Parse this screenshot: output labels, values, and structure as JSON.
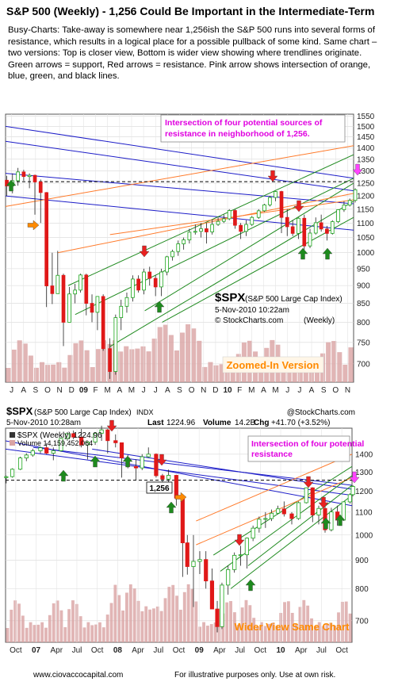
{
  "header": {
    "title": "S&P 500 (Weekly)  - 1,256 Could Be Important in the Intermediate-Term",
    "paragraphs": [
      "Busy-Charts:  Take-away is somewhere near 1,256ish the S&P 500 runs into several forms of resistance, which results in a logical place for a possible pullback of some kind.   Same chart – two versions: Top is closer view, Bottom is wider view showing where trendlines originate.  Green arrows = support, Red arrows = resistance.  Pink arrow shows intersection of orange, blue, green, and black lines."
    ]
  },
  "colors": {
    "resistance_note": "#e000e0",
    "blue_lines": "#1c1cc8",
    "green_lines": "#1f8a1f",
    "orange_lines": "#ff7a2a",
    "support_arrow": "#1e8a1e",
    "resistance_arrow": "#e82020",
    "pink_arrow": "#ff44ff",
    "up_candle": "#1aa51a",
    "down_candle": "#e01818",
    "zoom_label": "#ff8a00"
  },
  "chart_data": [
    {
      "type": "candlestick",
      "ticker": "$SPX",
      "index_name": "(S&P 500 Large Cap Index)",
      "timestamp": "5-Nov-2010 10:22am",
      "credit": "© StockCharts.com",
      "interval": "(Weekly)",
      "annotation": "Intersection of four potential sources of resistance in neighborhood of 1,256.",
      "version_label": "Zoomed-In Version",
      "x_ticks": [
        "J",
        "A",
        "S",
        "O",
        "N",
        "D",
        "09",
        "F",
        "M",
        "A",
        "M",
        "J",
        "J",
        "A",
        "S",
        "O",
        "N",
        "D",
        "10",
        "F",
        "M",
        "A",
        "M",
        "J",
        "J",
        "A",
        "S",
        "O",
        "N"
      ],
      "y_ticks": [
        700,
        750,
        800,
        850,
        900,
        950,
        1000,
        1050,
        1100,
        1150,
        1200,
        1250,
        1300,
        1350,
        1400,
        1450,
        1500,
        1550
      ],
      "ylim": [
        660,
        1560
      ],
      "y_scale": "log",
      "x_range": [
        "2008-07",
        "2010-11"
      ],
      "reference_level": 1256,
      "series": [
        {
          "values": [
            [
              "2008-07-04",
              1262,
              1280,
              1200,
              1239
            ],
            [
              "2008-07-18",
              1239,
              1290,
              1210,
              1260
            ],
            [
              "2008-08-01",
              1260,
              1313,
              1240,
              1296
            ],
            [
              "2008-08-15",
              1296,
              1305,
              1260,
              1277
            ],
            [
              "2008-08-29",
              1277,
              1290,
              1230,
              1282
            ],
            [
              "2008-09-12",
              1282,
              1285,
              1130,
              1255
            ],
            [
              "2008-09-26",
              1255,
              1265,
              1100,
              1213
            ],
            [
              "2008-10-10",
              1213,
              1215,
              840,
              899
            ],
            [
              "2008-10-24",
              899,
              1000,
              848,
              877
            ],
            [
              "2008-11-07",
              877,
              1006,
              880,
              930
            ],
            [
              "2008-11-21",
              930,
              935,
              741,
              800
            ],
            [
              "2008-12-05",
              800,
              896,
              815,
              876
            ],
            [
              "2008-12-19",
              876,
              905,
              850,
              887
            ],
            [
              "2009-01-02",
              887,
              935,
              880,
              931
            ],
            [
              "2009-01-16",
              931,
              935,
              818,
              850
            ],
            [
              "2009-01-30",
              850,
              875,
              800,
              826
            ],
            [
              "2009-02-13",
              826,
              870,
              780,
              869
            ],
            [
              "2009-02-27",
              869,
              875,
              730,
              735
            ],
            [
              "2009-03-13",
              735,
              760,
              667,
              683
            ],
            [
              "2009-03-27",
              683,
              820,
              676,
              812
            ],
            [
              "2009-04-10",
              812,
              860,
              780,
              842
            ],
            [
              "2009-04-24",
              842,
              880,
              825,
              866
            ],
            [
              "2009-05-08",
              866,
              930,
              855,
              919
            ],
            [
              "2009-05-22",
              919,
              930,
              880,
              887
            ],
            [
              "2009-06-05",
              887,
              950,
              875,
              940
            ],
            [
              "2009-06-19",
              940,
              956,
              900,
              921
            ],
            [
              "2009-07-03",
              921,
              930,
              870,
              896
            ],
            [
              "2009-07-17",
              896,
              950,
              870,
              940
            ],
            [
              "2009-07-31",
              940,
              990,
              930,
              987
            ],
            [
              "2009-08-14",
              987,
              1010,
              975,
              1004
            ],
            [
              "2009-08-28",
              1004,
              1040,
              990,
              1029
            ],
            [
              "2009-09-11",
              1029,
              1050,
              1010,
              1042
            ],
            [
              "2009-09-25",
              1042,
              1080,
              1030,
              1068
            ],
            [
              "2009-10-09",
              1068,
              1095,
              1060,
              1071
            ],
            [
              "2009-10-23",
              1071,
              1100,
              1050,
              1080
            ],
            [
              "2009-11-06",
              1080,
              1100,
              1030,
              1069
            ],
            [
              "2009-11-20",
              1069,
              1112,
              1060,
              1095
            ],
            [
              "2009-12-04",
              1095,
              1120,
              1090,
              1106
            ],
            [
              "2009-12-18",
              1106,
              1130,
              1100,
              1115
            ],
            [
              "2010-01-01",
              1115,
              1150,
              1110,
              1145
            ],
            [
              "2010-01-15",
              1145,
              1150,
              1080,
              1092
            ],
            [
              "2010-01-29",
              1092,
              1100,
              1045,
              1071
            ],
            [
              "2010-02-12",
              1071,
              1110,
              1055,
              1095
            ],
            [
              "2010-02-26",
              1095,
              1125,
              1090,
              1120
            ],
            [
              "2010-03-12",
              1120,
              1150,
              1115,
              1144
            ],
            [
              "2010-03-26",
              1144,
              1170,
              1140,
              1166
            ],
            [
              "2010-04-09",
              1166,
              1200,
              1160,
              1194
            ],
            [
              "2010-04-23",
              1194,
              1219,
              1180,
              1217
            ],
            [
              "2010-05-07",
              1217,
              1220,
              1065,
              1120
            ],
            [
              "2010-05-21",
              1120,
              1150,
              1055,
              1087
            ],
            [
              "2010-06-04",
              1087,
              1110,
              1055,
              1064
            ],
            [
              "2010-06-18",
              1064,
              1120,
              1045,
              1117
            ],
            [
              "2010-07-02",
              1117,
              1130,
              1010,
              1022
            ],
            [
              "2010-07-16",
              1022,
              1080,
              1015,
              1065
            ],
            [
              "2010-07-30",
              1065,
              1120,
              1060,
              1101
            ],
            [
              "2010-08-13",
              1101,
              1130,
              1070,
              1079
            ],
            [
              "2010-08-27",
              1079,
              1090,
              1040,
              1064
            ],
            [
              "2010-09-10",
              1064,
              1110,
              1060,
              1105
            ],
            [
              "2010-09-24",
              1105,
              1150,
              1100,
              1148
            ],
            [
              "2010-10-08",
              1148,
              1180,
              1140,
              1165
            ],
            [
              "2010-10-22",
              1165,
              1190,
              1160,
              1183
            ],
            [
              "2010-11-05",
              1183,
              1230,
              1175,
              1224
            ]
          ]
        }
      ]
    },
    {
      "type": "candlestick",
      "ticker": "$SPX",
      "index_name": "(S&P 500 Large Cap Index)",
      "exchange": "INDX",
      "credit": "@StockCharts.com",
      "timestamp": "5-Nov-2010 10:28am",
      "last_label": "Last",
      "last_value": "1224.96",
      "volume_label": "Volume",
      "volume_value": "14.2B",
      "chg_label": "Chg",
      "chg_value": "+41.70 (+3.52%)",
      "legend_price": "$SPX (Weekly) 1224.96",
      "legend_volume": "Volume 14,159,452,064",
      "annotation": "Intersection of four potential resistance",
      "reference_label": "1,256",
      "version_label": "Wider View Same Chart",
      "x_ticks": [
        "Oct",
        "07",
        "Apr",
        "Jul",
        "Oct",
        "08",
        "Apr",
        "Jul",
        "Oct",
        "09",
        "Apr",
        "Jul",
        "Oct",
        "10",
        "Apr",
        "Jul",
        "Oct"
      ],
      "y_ticks": [
        700,
        800,
        900,
        1000,
        1100,
        1200,
        1300,
        1400
      ],
      "ylim": [
        640,
        1560
      ],
      "y_scale": "log",
      "x_range": [
        "2006-08",
        "2010-11"
      ],
      "reference_level": 1256,
      "series": [
        {
          "values": [
            [
              "2006-08-04",
              1270,
              1280,
              1240,
              1275
            ],
            [
              "2006-09-01",
              1275,
              1320,
              1270,
              1315
            ],
            [
              "2006-10-06",
              1315,
              1385,
              1310,
              1378
            ],
            [
              "2006-11-03",
              1378,
              1405,
              1360,
              1395
            ],
            [
              "2006-12-01",
              1395,
              1432,
              1385,
              1420
            ],
            [
              "2007-01-05",
              1420,
              1445,
              1405,
              1438
            ],
            [
              "2007-02-02",
              1438,
              1465,
              1400,
              1406
            ],
            [
              "2007-03-02",
              1406,
              1440,
              1365,
              1420
            ],
            [
              "2007-04-06",
              1420,
              1500,
              1415,
              1495
            ],
            [
              "2007-05-04",
              1495,
              1535,
              1480,
              1525
            ],
            [
              "2007-06-01",
              1525,
              1545,
              1490,
              1503
            ],
            [
              "2007-07-06",
              1503,
              1555,
              1440,
              1455
            ],
            [
              "2007-08-03",
              1455,
              1470,
              1370,
              1473
            ],
            [
              "2007-09-07",
              1473,
              1530,
              1455,
              1527
            ],
            [
              "2007-10-05",
              1527,
              1576,
              1480,
              1549
            ],
            [
              "2007-11-02",
              1549,
              1555,
              1405,
              1481
            ],
            [
              "2007-12-07",
              1481,
              1520,
              1440,
              1468
            ],
            [
              "2008-01-04",
              1468,
              1470,
              1270,
              1378
            ],
            [
              "2008-02-01",
              1378,
              1396,
              1320,
              1330
            ],
            [
              "2008-03-07",
              1330,
              1370,
              1256,
              1322
            ],
            [
              "2008-04-04",
              1322,
              1400,
              1310,
              1385
            ],
            [
              "2008-05-02",
              1385,
              1440,
              1380,
              1400
            ],
            [
              "2008-06-06",
              1400,
              1405,
              1270,
              1280
            ],
            [
              "2008-07-04",
              1280,
              1290,
              1200,
              1262
            ],
            [
              "2008-08-01",
              1262,
              1313,
              1240,
              1282
            ],
            [
              "2008-09-05",
              1282,
              1285,
              1130,
              1166
            ],
            [
              "2008-10-03",
              1166,
              1170,
              840,
              968
            ],
            [
              "2008-10-24",
              968,
              1000,
              848,
              877
            ],
            [
              "2008-11-21",
              877,
              1000,
              741,
              896
            ],
            [
              "2008-12-19",
              896,
              935,
              850,
              903
            ],
            [
              "2009-01-16",
              903,
              935,
              800,
              826
            ],
            [
              "2009-02-13",
              826,
              870,
              740,
              735
            ],
            [
              "2009-03-06",
              735,
              760,
              667,
              683
            ],
            [
              "2009-03-27",
              683,
              820,
              676,
              812
            ],
            [
              "2009-04-24",
              812,
              880,
              780,
              866
            ],
            [
              "2009-05-22",
              866,
              930,
              855,
              919
            ],
            [
              "2009-06-19",
              919,
              956,
              880,
              921
            ],
            [
              "2009-07-17",
              921,
              990,
              870,
              987
            ],
            [
              "2009-08-14",
              987,
              1040,
              975,
              1029
            ],
            [
              "2009-09-11",
              1029,
              1080,
              1010,
              1068
            ],
            [
              "2009-10-09",
              1068,
              1100,
              1030,
              1071
            ],
            [
              "2009-11-06",
              1071,
              1112,
              1060,
              1095
            ],
            [
              "2009-12-04",
              1095,
              1130,
              1090,
              1115
            ],
            [
              "2010-01-01",
              1115,
              1150,
              1080,
              1092
            ],
            [
              "2010-02-05",
              1092,
              1100,
              1045,
              1071
            ],
            [
              "2010-03-05",
              1071,
              1150,
              1065,
              1144
            ],
            [
              "2010-04-09",
              1144,
              1219,
              1140,
              1217
            ],
            [
              "2010-05-07",
              1217,
              1220,
              1055,
              1087
            ],
            [
              "2010-06-04",
              1087,
              1130,
              1045,
              1117
            ],
            [
              "2010-07-02",
              1117,
              1130,
              1010,
              1022
            ],
            [
              "2010-07-30",
              1022,
              1120,
              1015,
              1101
            ],
            [
              "2010-08-27",
              1101,
              1130,
              1040,
              1064
            ],
            [
              "2010-09-24",
              1064,
              1150,
              1060,
              1148
            ],
            [
              "2010-10-22",
              1148,
              1190,
              1140,
              1183
            ],
            [
              "2010-11-05",
              1183,
              1230,
              1175,
              1224
            ]
          ]
        }
      ]
    }
  ],
  "footer": {
    "site": "www.ciovaccocapital.com",
    "disclaimer": "For illustrative purposes only.   Use at own risk."
  }
}
